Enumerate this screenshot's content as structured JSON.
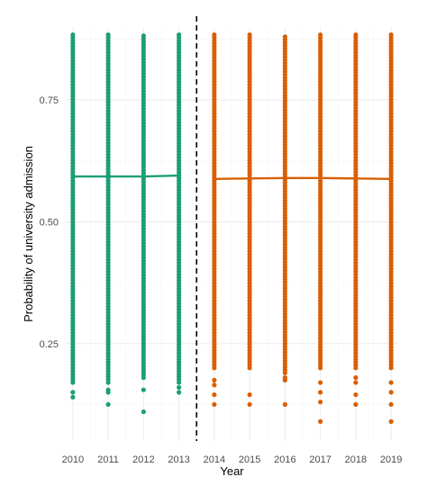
{
  "chart_data": {
    "type": "scatter",
    "title": "",
    "xlabel": "Year",
    "ylabel": "Probability of university admission",
    "xlim": [
      2009.8,
      2019.2
    ],
    "ylim": [
      0.05,
      0.9
    ],
    "x_ticks": [
      2010,
      2011,
      2012,
      2013,
      2014,
      2015,
      2016,
      2017,
      2018,
      2019
    ],
    "y_ticks": [
      0.25,
      0.5,
      0.75
    ],
    "y_tick_labels": [
      "0.25",
      "0.50",
      "0.75"
    ],
    "grid": true,
    "legend": "none",
    "divider_x": 2013.5,
    "divider_style": "dashed",
    "series": [
      {
        "color": "#1b9e77",
        "years": [
          2010,
          2011,
          2012,
          2013
        ],
        "point_ranges": [
          {
            "year": 2010,
            "y_min": 0.14,
            "y_max": 0.885,
            "dense_min": 0.17,
            "outliers": [
              0.14,
              0.15
            ]
          },
          {
            "year": 2011,
            "y_min": 0.125,
            "y_max": 0.885,
            "dense_min": 0.17,
            "outliers": [
              0.125,
              0.15,
              0.155
            ]
          },
          {
            "year": 2012,
            "y_min": 0.11,
            "y_max": 0.885,
            "dense_min": 0.18,
            "outliers": [
              0.11,
              0.155
            ]
          },
          {
            "year": 2013,
            "y_min": 0.15,
            "y_max": 0.885,
            "dense_min": 0.17,
            "outliers": [
              0.15,
              0.16
            ]
          }
        ],
        "trend": {
          "x": [
            2010,
            2011,
            2012,
            2013
          ],
          "y": [
            0.593,
            0.593,
            0.593,
            0.595
          ]
        }
      },
      {
        "color": "#d95f02",
        "years": [
          2014,
          2015,
          2016,
          2017,
          2018,
          2019
        ],
        "point_ranges": [
          {
            "year": 2014,
            "y_min": 0.125,
            "y_max": 0.885,
            "dense_min": 0.2,
            "outliers": [
              0.125,
              0.145,
              0.165,
              0.175
            ]
          },
          {
            "year": 2015,
            "y_min": 0.125,
            "y_max": 0.885,
            "dense_min": 0.2,
            "outliers": [
              0.125,
              0.145
            ]
          },
          {
            "year": 2016,
            "y_min": 0.125,
            "y_max": 0.885,
            "dense_min": 0.19,
            "outliers": [
              0.125,
              0.175,
              0.18
            ]
          },
          {
            "year": 2017,
            "y_min": 0.09,
            "y_max": 0.885,
            "dense_min": 0.2,
            "outliers": [
              0.09,
              0.13,
              0.15,
              0.17
            ]
          },
          {
            "year": 2018,
            "y_min": 0.125,
            "y_max": 0.885,
            "dense_min": 0.2,
            "outliers": [
              0.125,
              0.145,
              0.17,
              0.18
            ]
          },
          {
            "year": 2019,
            "y_min": 0.09,
            "y_max": 0.885,
            "dense_min": 0.2,
            "outliers": [
              0.09,
              0.125,
              0.15,
              0.17
            ]
          }
        ],
        "trend": {
          "x": [
            2014,
            2015,
            2016,
            2017,
            2018,
            2019
          ],
          "y": [
            0.588,
            0.589,
            0.59,
            0.59,
            0.589,
            0.588
          ]
        }
      }
    ]
  }
}
